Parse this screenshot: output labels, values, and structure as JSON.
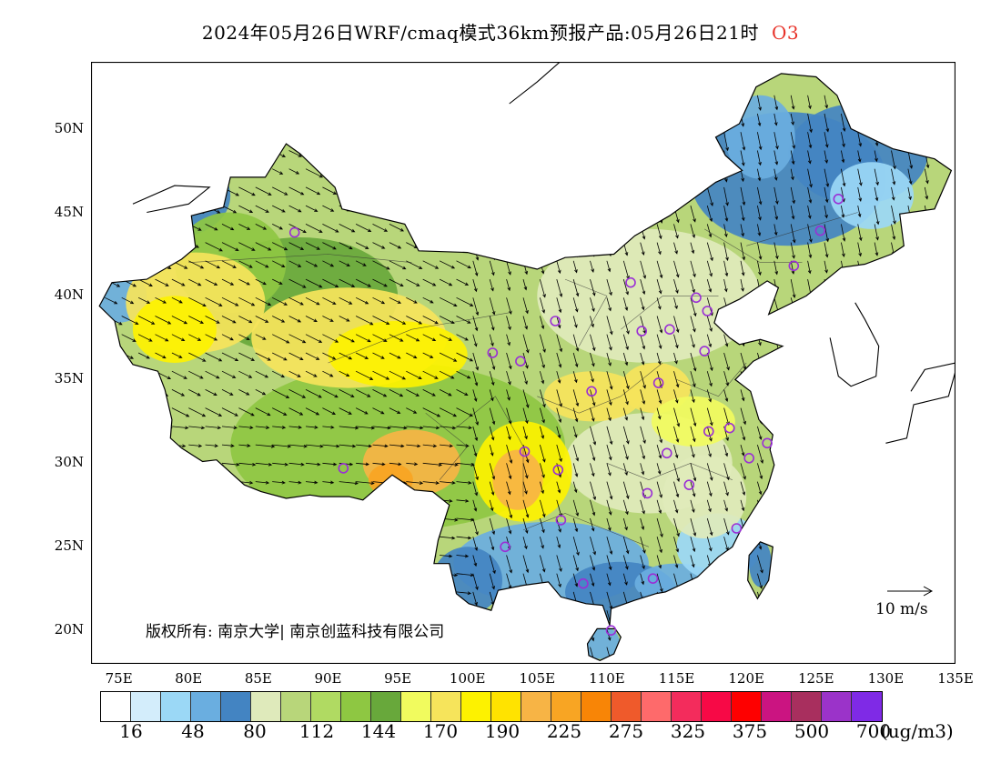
{
  "title": {
    "main": "2024年05月26日WRF/cmaq模式36km预报产品:05月26日21时",
    "variable": "O3"
  },
  "map": {
    "lat_labels": [
      "50N",
      "45N",
      "40N",
      "35N",
      "30N",
      "25N",
      "20N"
    ],
    "lon_labels": [
      "75E",
      "80E",
      "85E",
      "90E",
      "95E",
      "100E",
      "105E",
      "110E",
      "115E",
      "120E",
      "125E",
      "130E",
      "135E"
    ],
    "lat_range": [
      18,
      54
    ],
    "lon_range": [
      73,
      135
    ],
    "copyright": "版权所有: 南京大学| 南京创蓝科技有限公司",
    "wind_reference": "10 m/s",
    "colors": {
      "background": "#ffffff",
      "ocean": "#ffffff",
      "coastline": "#000000",
      "station_circle": "#9a2fd6",
      "wind_arrow": "#000000",
      "title_variable": "#e8332a"
    }
  },
  "colorbar": {
    "colors": [
      "#ffffff",
      "#d3edfb",
      "#9bd8f6",
      "#6aaee0",
      "#4384c2",
      "#dfeabb",
      "#b8d67a",
      "#b0da62",
      "#8ec742",
      "#68a83b",
      "#f1fb5e",
      "#f6e45b",
      "#fdf200",
      "#ffe300",
      "#f7b445",
      "#f8a523",
      "#f88506",
      "#ef5a2b",
      "#fe6a6b",
      "#f32c5c",
      "#f70946",
      "#fe0000",
      "#cb1481",
      "#a82f5e",
      "#9b33c9",
      "#7f2ae6"
    ],
    "labels": [
      "16",
      "48",
      "80",
      "112",
      "144",
      "170",
      "190",
      "225",
      "275",
      "325",
      "375",
      "500",
      "700"
    ],
    "unit": "(ug/m3)"
  },
  "stations": [
    {
      "lon": 87.6,
      "lat": 43.8
    },
    {
      "lon": 101.8,
      "lat": 36.6
    },
    {
      "lon": 103.8,
      "lat": 36.1
    },
    {
      "lon": 106.3,
      "lat": 38.5
    },
    {
      "lon": 111.7,
      "lat": 40.8
    },
    {
      "lon": 112.5,
      "lat": 37.9
    },
    {
      "lon": 114.5,
      "lat": 38.0
    },
    {
      "lon": 116.4,
      "lat": 39.9
    },
    {
      "lon": 117.2,
      "lat": 39.1
    },
    {
      "lon": 117.0,
      "lat": 36.7
    },
    {
      "lon": 113.7,
      "lat": 34.8
    },
    {
      "lon": 108.9,
      "lat": 34.3
    },
    {
      "lon": 104.1,
      "lat": 30.7
    },
    {
      "lon": 106.5,
      "lat": 29.6
    },
    {
      "lon": 91.1,
      "lat": 29.7
    },
    {
      "lon": 102.7,
      "lat": 25.0
    },
    {
      "lon": 106.7,
      "lat": 26.6
    },
    {
      "lon": 108.3,
      "lat": 22.8
    },
    {
      "lon": 113.3,
      "lat": 23.1
    },
    {
      "lon": 112.9,
      "lat": 28.2
    },
    {
      "lon": 114.3,
      "lat": 30.6
    },
    {
      "lon": 115.9,
      "lat": 28.7
    },
    {
      "lon": 117.3,
      "lat": 31.9
    },
    {
      "lon": 118.8,
      "lat": 32.1
    },
    {
      "lon": 121.5,
      "lat": 31.2
    },
    {
      "lon": 120.2,
      "lat": 30.3
    },
    {
      "lon": 119.3,
      "lat": 26.1
    },
    {
      "lon": 110.3,
      "lat": 20.0
    },
    {
      "lon": 123.4,
      "lat": 41.8
    },
    {
      "lon": 125.3,
      "lat": 43.9
    },
    {
      "lon": 126.6,
      "lat": 45.8
    }
  ]
}
